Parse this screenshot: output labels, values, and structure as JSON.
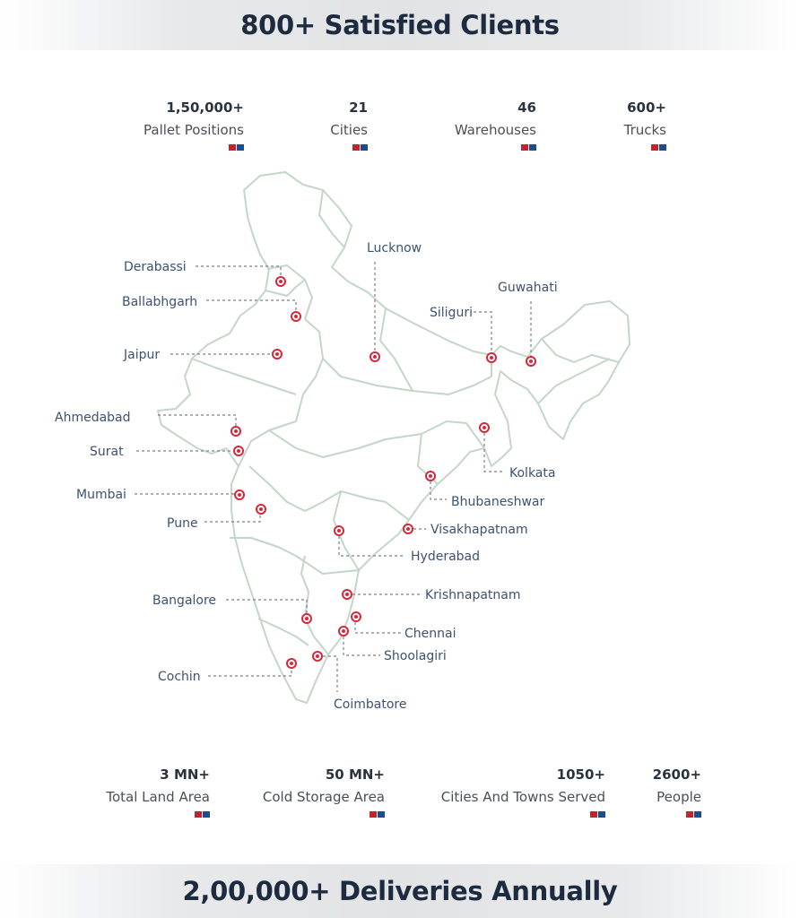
{
  "header": {
    "title": "800+ Satisfied Clients"
  },
  "footer": {
    "title": "2,00,000+ Deliveries Annually"
  },
  "colors": {
    "flag_red": "#c0252f",
    "flag_blue": "#1f4d8c",
    "marker": "#d9273a",
    "map_stroke": "#c3d6c8"
  },
  "stats_top": [
    {
      "value": "1,50,000+",
      "label": "Pallet Positions"
    },
    {
      "value": "21",
      "label": "Cities"
    },
    {
      "value": "46",
      "label": "Warehouses"
    },
    {
      "value": "600+",
      "label": "Trucks"
    }
  ],
  "stats_bottom": [
    {
      "value": "3 MN+",
      "label": "Total Land Area"
    },
    {
      "value": "50 MN+",
      "label": "Cold Storage Area"
    },
    {
      "value": "1050+",
      "label": "Cities And Towns Served"
    },
    {
      "value": "2600+",
      "label": "People"
    }
  ],
  "map": {
    "icon": "india-map-icon",
    "cities": [
      "Lucknow",
      "Derabassi",
      "Ballabhgarh",
      "Jaipur",
      "Siliguri",
      "Guwahati",
      "Ahmedabad",
      "Surat",
      "Mumbai",
      "Pune",
      "Kolkata",
      "Bhubaneshwar",
      "Visakhapatnam",
      "Hyderabad",
      "Bangalore",
      "Krishnapatnam",
      "Chennai",
      "Shoolagiri",
      "Cochin",
      "Coimbatore"
    ]
  }
}
